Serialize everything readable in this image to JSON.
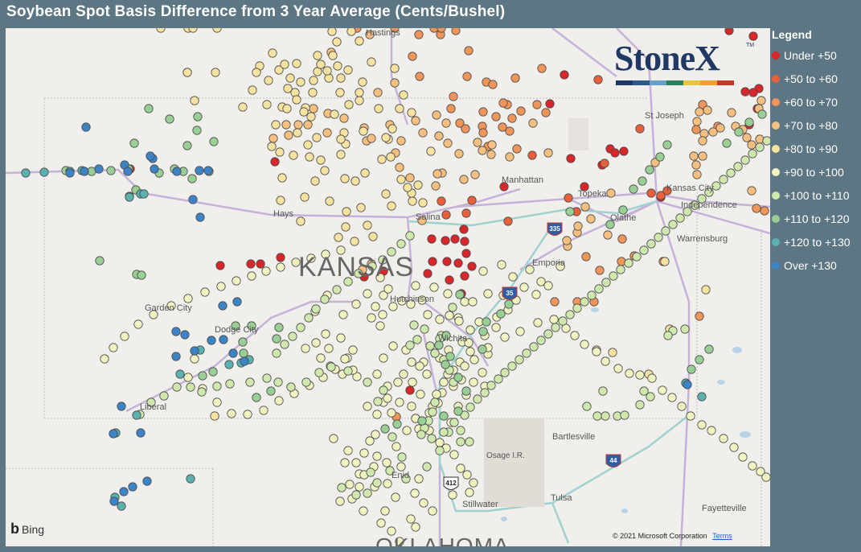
{
  "title": "Soybean Spot Basis Difference from 3 Year Average (Cents/Bushel)",
  "legend": {
    "title": "Legend",
    "items": [
      {
        "label": "Under +50",
        "color": "#d9262a"
      },
      {
        "label": "+50 to +60",
        "color": "#e8603a"
      },
      {
        "label": "+60 to +70",
        "color": "#f0955a"
      },
      {
        "label": "+70 to +80",
        "color": "#f5c07f"
      },
      {
        "label": "+80 to +90",
        "color": "#f7e2a0"
      },
      {
        "label": "+90 to +100",
        "color": "#f1f3c0"
      },
      {
        "label": "+100 to +110",
        "color": "#cfe8ad"
      },
      {
        "label": "+110 to +120",
        "color": "#99cf95"
      },
      {
        "label": "+120 to +130",
        "color": "#5ab1b0"
      },
      {
        "label": "Over +130",
        "color": "#3d84c6"
      }
    ]
  },
  "logo": {
    "text": "StoneX",
    "tm": "TM",
    "bar_colors": [
      "#1f3864",
      "#2e5a88",
      "#6aa0c8",
      "#2e7d5b",
      "#e6c640",
      "#f0a030",
      "#c0392b"
    ]
  },
  "map": {
    "state_label": "KANSAS",
    "bottom_state_label": "OKLAHOMA",
    "places": [
      {
        "name": "Hays"
      },
      {
        "name": "Salina"
      },
      {
        "name": "Manhattan"
      },
      {
        "name": "Topeka"
      },
      {
        "name": "Kansas City"
      },
      {
        "name": "Independence"
      },
      {
        "name": "Olathe"
      },
      {
        "name": "Warrensburg"
      },
      {
        "name": "St Joseph"
      },
      {
        "name": "Emporia"
      },
      {
        "name": "Hutchinson"
      },
      {
        "name": "Wichita"
      },
      {
        "name": "Garden City"
      },
      {
        "name": "Dodge City"
      },
      {
        "name": "Liberal"
      },
      {
        "name": "Bartlesville"
      },
      {
        "name": "Osage I.R."
      },
      {
        "name": "Enid"
      },
      {
        "name": "Stillwater"
      },
      {
        "name": "Tulsa"
      },
      {
        "name": "Fayetteville"
      },
      {
        "name": "Hastings"
      }
    ],
    "shields": [
      "335",
      "35",
      "44",
      "412"
    ]
  },
  "attribution": {
    "bing": "Bing",
    "copyright": "© 2021 Microsoft Corporation",
    "terms": "Terms"
  }
}
